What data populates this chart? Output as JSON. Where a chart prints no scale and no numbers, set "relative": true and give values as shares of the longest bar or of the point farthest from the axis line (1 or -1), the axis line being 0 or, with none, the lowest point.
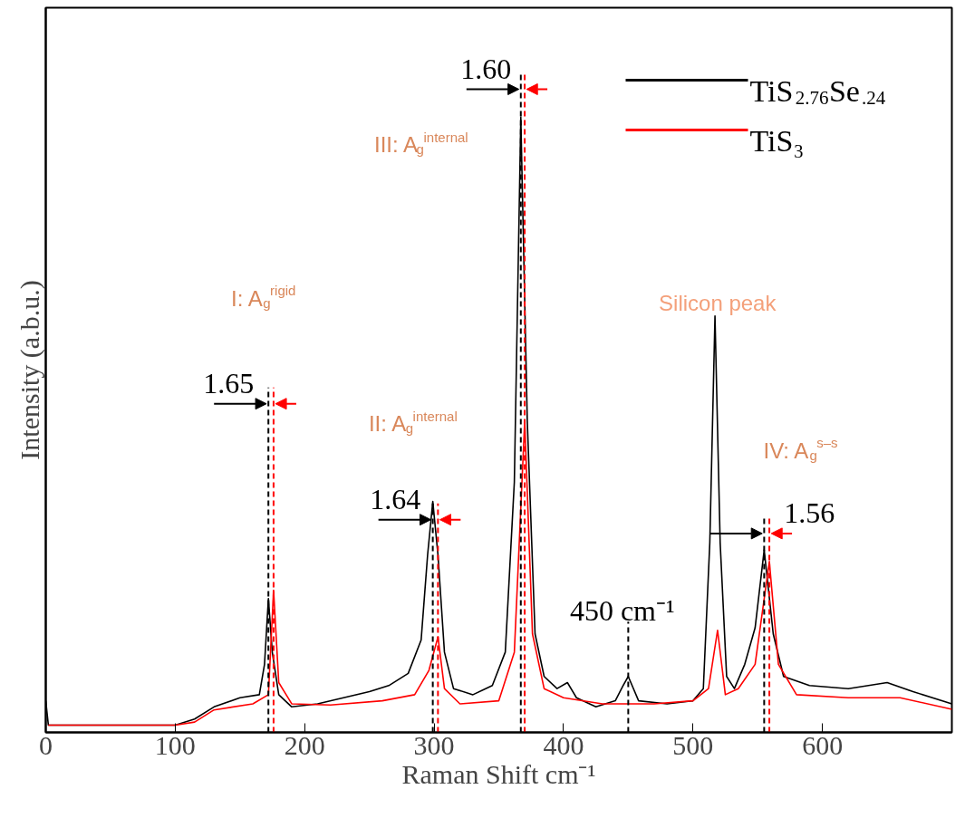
{
  "chart_data": {
    "type": "line",
    "relative": true,
    "xlabel": "Raman Shift cm⁻¹",
    "ylabel": "Intensity (a.b.u.)",
    "xlim": [
      0,
      700
    ],
    "xticks": [
      0,
      100,
      200,
      300,
      400,
      500,
      600
    ],
    "legend": "top right",
    "series": [
      {
        "name": "TiS$_{2.76}$Se$_{.24}$",
        "color": "#000000",
        "x": [
          0,
          2,
          50,
          100,
          115,
          130,
          150,
          165,
          169,
          172,
          175,
          180,
          190,
          210,
          230,
          250,
          265,
          280,
          290,
          295,
          299,
          303,
          308,
          315,
          330,
          345,
          355,
          362,
          367,
          372,
          378,
          385,
          395,
          403,
          410,
          425,
          440,
          446,
          450,
          458,
          480,
          500,
          508,
          513,
          517,
          521,
          526,
          532,
          540,
          548,
          555,
          562,
          570,
          590,
          620,
          650,
          670,
          700
        ],
        "values": [
          0.04,
          0.0,
          0.0,
          0.0,
          0.01,
          0.03,
          0.045,
          0.05,
          0.1,
          0.208,
          0.12,
          0.05,
          0.03,
          0.035,
          0.045,
          0.055,
          0.065,
          0.085,
          0.14,
          0.28,
          0.368,
          0.28,
          0.12,
          0.06,
          0.05,
          0.065,
          0.12,
          0.4,
          1.0,
          0.5,
          0.15,
          0.08,
          0.06,
          0.07,
          0.045,
          0.03,
          0.04,
          0.065,
          0.08,
          0.04,
          0.035,
          0.04,
          0.06,
          0.3,
          0.673,
          0.3,
          0.08,
          0.06,
          0.1,
          0.16,
          0.288,
          0.15,
          0.08,
          0.065,
          0.06,
          0.07,
          0.055,
          0.035
        ]
      },
      {
        "name": "TiS₃",
        "color": "#ff0000",
        "x": [
          2,
          100,
          115,
          130,
          160,
          172,
          176,
          180,
          190,
          220,
          260,
          285,
          296,
          303,
          308,
          320,
          350,
          362,
          370,
          376,
          385,
          400,
          430,
          470,
          500,
          512,
          519,
          525,
          535,
          548,
          559,
          566,
          580,
          620,
          660,
          700
        ],
        "values": [
          0.0,
          0.0,
          0.005,
          0.025,
          0.035,
          0.05,
          0.222,
          0.07,
          0.035,
          0.033,
          0.04,
          0.05,
          0.09,
          0.145,
          0.06,
          0.035,
          0.04,
          0.12,
          0.5,
          0.15,
          0.06,
          0.045,
          0.035,
          0.035,
          0.04,
          0.06,
          0.156,
          0.05,
          0.06,
          0.1,
          0.269,
          0.1,
          0.05,
          0.045,
          0.045,
          0.026
        ]
      }
    ],
    "ref_lines": [
      {
        "axis": "x",
        "value": 172,
        "color": "#000000",
        "line_style": "dashed"
      },
      {
        "axis": "x",
        "value": 176,
        "color": "#ff0000",
        "line_style": "dashed"
      },
      {
        "axis": "x",
        "value": 299,
        "color": "#000000",
        "line_style": "dashed"
      },
      {
        "axis": "x",
        "value": 303,
        "color": "#ff0000",
        "line_style": "dashed"
      },
      {
        "axis": "x",
        "value": 367,
        "color": "#000000",
        "line_style": "dashed"
      },
      {
        "axis": "x",
        "value": 370,
        "color": "#ff0000",
        "line_style": "dashed"
      },
      {
        "axis": "x",
        "value": 450,
        "label": "450 cm⁻¹",
        "color": "#000000",
        "line_style": "dashed"
      },
      {
        "axis": "x",
        "value": 555,
        "color": "#000000",
        "line_style": "dashed"
      },
      {
        "axis": "x",
        "value": 559,
        "color": "#ff0000",
        "line_style": "dashed"
      }
    ],
    "annotations": [
      "1.65",
      "1.64",
      "1.60",
      "1.56",
      "I: A$_{g}$$^{rigid}$",
      "II: A$_{g}$$^{internal}$",
      "III: A$_{g}$$^{internal}$",
      "IV: A$_{g}$$^{s–s}$",
      "Silicon peak"
    ]
  }
}
